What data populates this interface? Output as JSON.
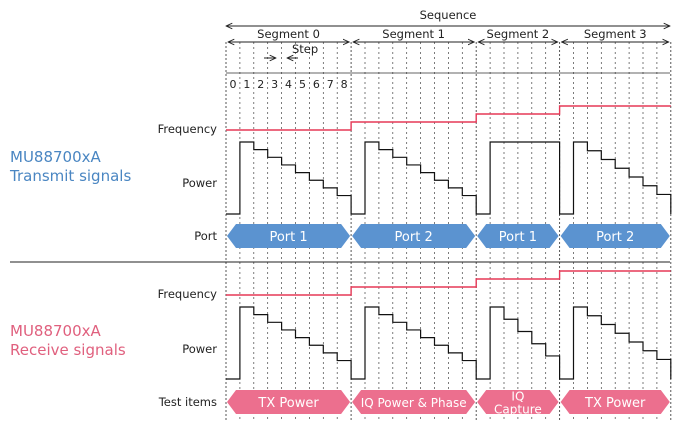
{
  "colors": {
    "transmit": "#4a86c2",
    "receive": "#e0607e",
    "frequency_line": "#e53957",
    "port_fill": "#5b93d0",
    "test_fill": "#ec6f8e",
    "power_line": "#111111"
  },
  "sequence_label": "Sequence",
  "segments": [
    {
      "label": "Segment 0",
      "steps": 9
    },
    {
      "label": "Segment 1",
      "steps": 9
    },
    {
      "label": "Segment 2",
      "steps": 6
    },
    {
      "label": "Segment 3",
      "steps": 8
    }
  ],
  "step_label": "Step",
  "step_ticks": [
    "0",
    "1",
    "2",
    "3",
    "4",
    "5",
    "6",
    "7",
    "8"
  ],
  "transmit": {
    "title_line1": "MU88700xA",
    "title_line2": "Transmit signals",
    "row_labels": {
      "frequency": "Frequency",
      "power": "Power",
      "port": "Port"
    },
    "frequency_levels": [
      0,
      1,
      2,
      3
    ],
    "power_shapes": [
      "ramp",
      "ramp",
      "flat",
      "ramp"
    ],
    "ports": [
      "Port 1",
      "Port 2",
      "Port 1",
      "Port 2"
    ]
  },
  "receive": {
    "title_line1": "MU88700xA",
    "title_line2": "Receive signals",
    "row_labels": {
      "frequency": "Frequency",
      "power": "Power",
      "test_items": "Test items"
    },
    "frequency_levels": [
      0,
      1,
      2,
      3
    ],
    "power_shapes": [
      "ramp",
      "ramp",
      "ramp",
      "ramp"
    ],
    "tests": [
      "TX Power",
      "IQ Power & Phase",
      "IQ\nCapture",
      "TX Power"
    ]
  }
}
